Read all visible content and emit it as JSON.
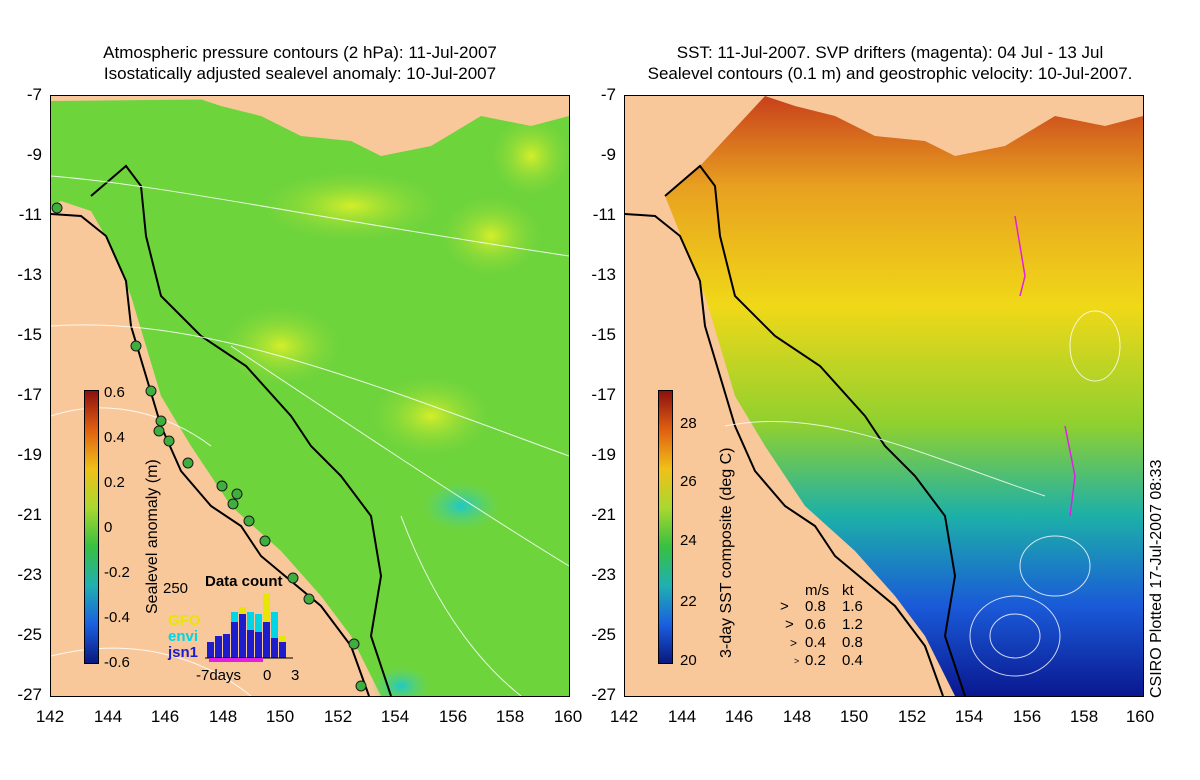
{
  "left_panel": {
    "title_line1": "Atmospheric pressure contours (2 hPa): 11-Jul-2007",
    "title_line2": "Isostatically adjusted sealevel anomaly: 10-Jul-2007",
    "colorbar_label": "Sealevel anomaly (m)",
    "colorbar_ticks": [
      "0.6",
      "0.4",
      "0.2",
      "0",
      "-0.2",
      "-0.4",
      "-0.6"
    ],
    "data_count": {
      "title": "Data count",
      "ymax_label": "250",
      "x_labels": [
        "-7days",
        "0",
        "3"
      ],
      "legend": [
        {
          "name": "GFO",
          "color": "#e6e600"
        },
        {
          "name": "envi",
          "color": "#00d5e6"
        },
        {
          "name": "jsn1",
          "color": "#1d1dcc"
        }
      ]
    }
  },
  "right_panel": {
    "title_line1": "SST: 11-Jul-2007. SVP drifters (magenta): 04 Jul - 13 Jul",
    "title_line2": "Sealevel contours (0.1 m) and geostrophic velocity: 10-Jul-2007.",
    "colorbar_label": "3-day SST composite (deg C)",
    "colorbar_ticks": [
      "28",
      "26",
      "24",
      "22",
      "20"
    ],
    "velocity_legend": {
      "header_ms": "m/s",
      "header_kt": "kt",
      "rows": [
        {
          "ms": "0.8",
          "kt": "1.6"
        },
        {
          "ms": "0.6",
          "kt": "1.2"
        },
        {
          "ms": "0.4",
          "kt": "0.8"
        },
        {
          "ms": "0.2",
          "kt": "0.4"
        }
      ]
    }
  },
  "axes": {
    "y_ticks": [
      "-7",
      "-9",
      "-11",
      "-13",
      "-15",
      "-17",
      "-19",
      "-21",
      "-23",
      "-25",
      "-27"
    ],
    "x_ticks": [
      "142",
      "144",
      "146",
      "148",
      "150",
      "152",
      "154",
      "156",
      "158",
      "160"
    ]
  },
  "credit": "CSIRO Plotted 17-Jul-2007 08:33",
  "colors": {
    "land": "#f9c89a",
    "ocean_anomaly": "#6ed43c",
    "tide_station": "#3fae3f"
  }
}
